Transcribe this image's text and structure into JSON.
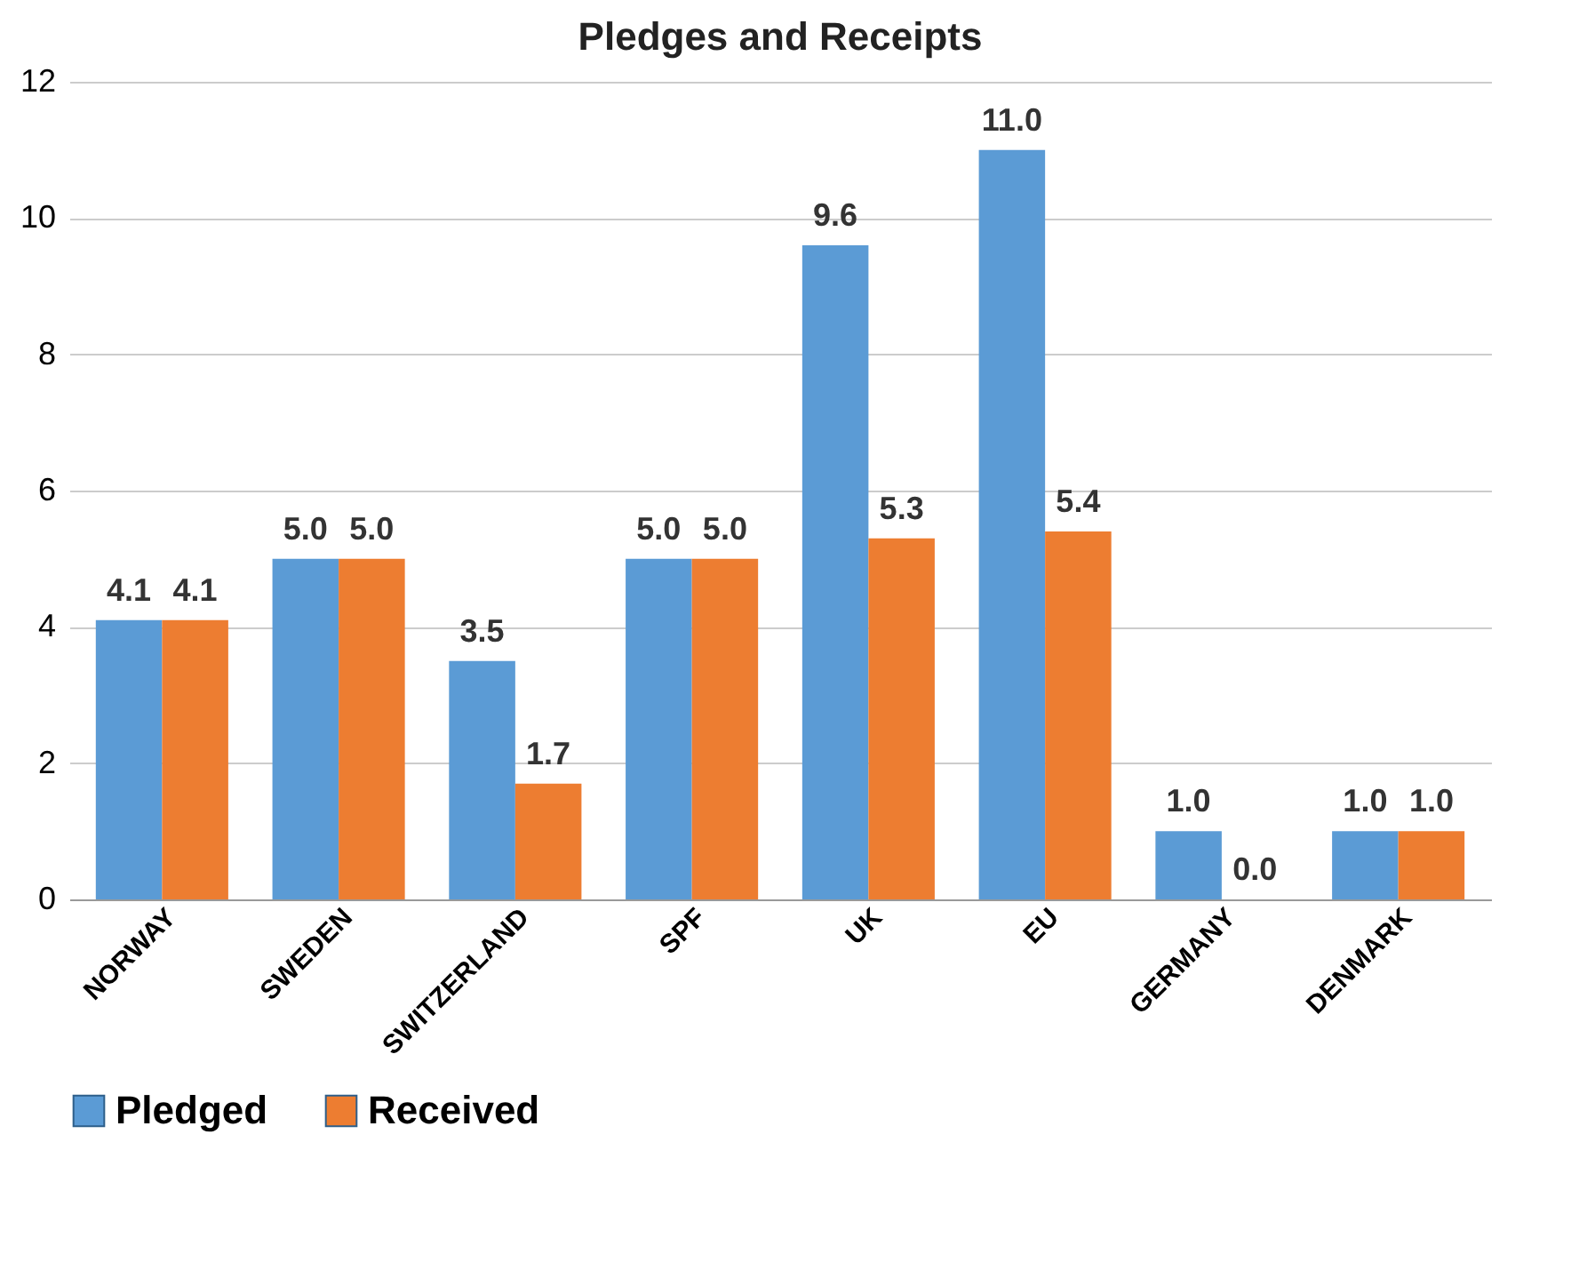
{
  "chart_data": {
    "type": "bar",
    "title": "Pledges and Receipts",
    "categories": [
      "NORWAY",
      "SWEDEN",
      "SWITZERLAND",
      "SPF",
      "UK",
      "EU",
      "GERMANY",
      "DENMARK"
    ],
    "series": [
      {
        "name": "Pledged",
        "color": "#5b9bd5",
        "values": [
          4.1,
          5,
          3.5,
          5,
          9.6,
          11,
          1,
          1
        ],
        "value_labels": [
          "4.1",
          "5.0",
          "3.5",
          "5.0",
          "9.6",
          "11.0",
          "1.0",
          "1.0"
        ]
      },
      {
        "name": "Received",
        "color": "#ed7d31",
        "values": [
          4.1,
          5,
          1.7,
          5,
          5.3,
          5.4,
          0,
          1
        ],
        "value_labels": [
          "4.1",
          "5.0",
          "1.7",
          "5.0",
          "5.3",
          "5.4",
          "0.0",
          "1.0"
        ]
      }
    ],
    "ylim": [
      0,
      12
    ],
    "yticks": [
      0,
      2,
      4,
      6,
      8,
      10,
      12
    ],
    "grid": "y",
    "legend": "bottom"
  }
}
